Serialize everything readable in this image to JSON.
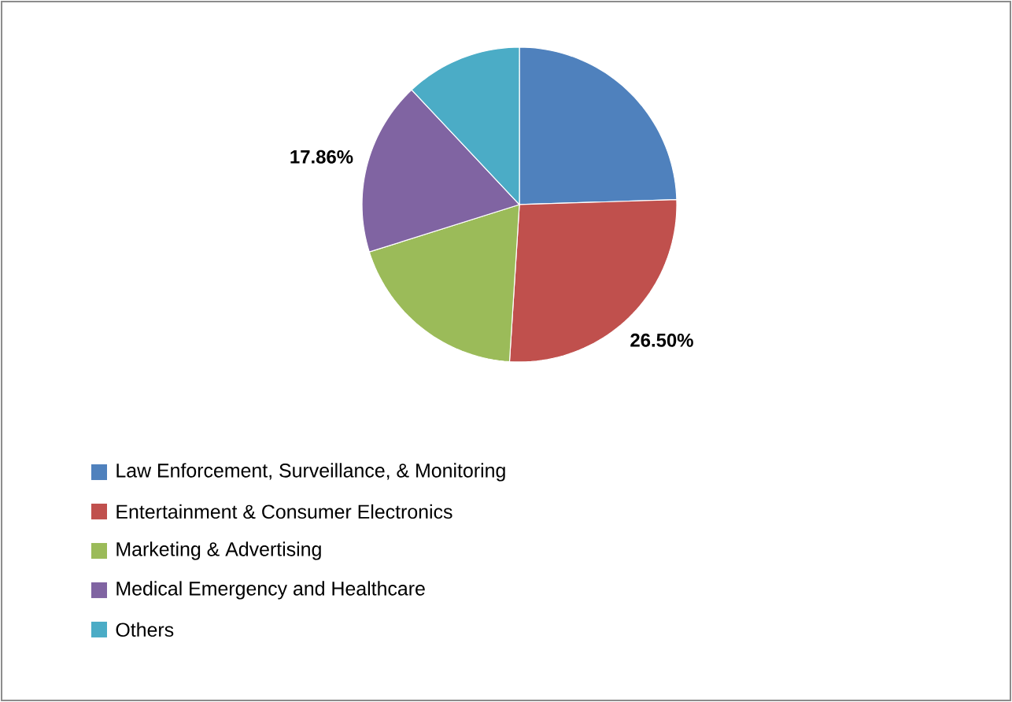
{
  "chart_data": {
    "type": "pie",
    "categories": [
      "Law Enforcement, Surveillance, & Monitoring",
      "Entertainment & Consumer Electronics",
      "Marketing & Advertising",
      "Medical Emergency and Healthcare",
      "Others"
    ],
    "values": [
      24.5,
      26.5,
      19.14,
      17.86,
      12
    ],
    "value_labels": [
      null,
      "26.50%",
      null,
      "17.86%",
      null
    ],
    "colors": [
      "#4f81bd",
      "#c0504d",
      "#9bbb59",
      "#8064a2",
      "#4bacc6"
    ],
    "legend": "bottom"
  }
}
